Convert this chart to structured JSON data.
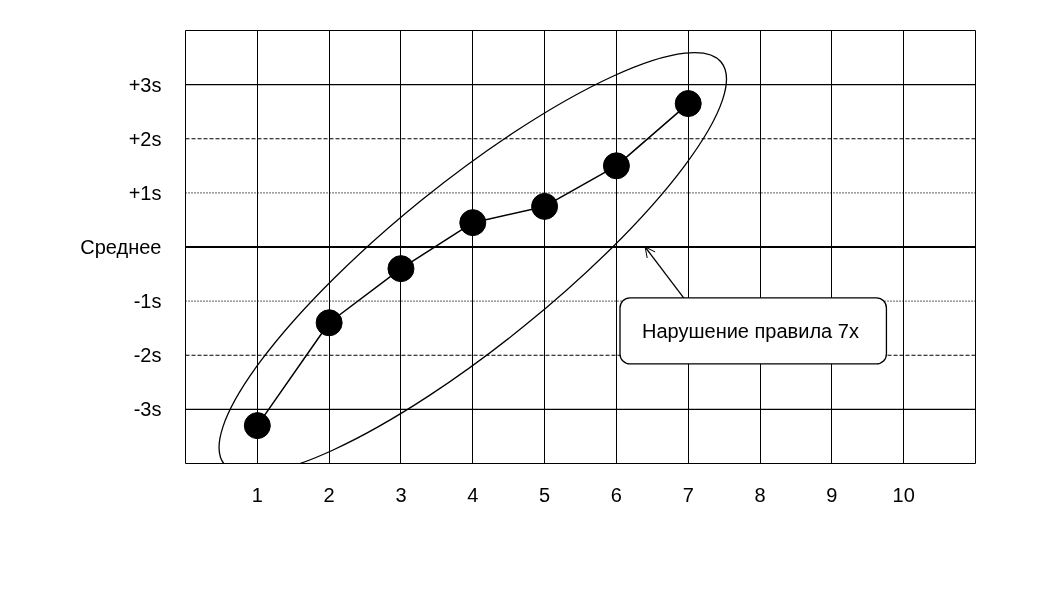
{
  "chart_data": {
    "type": "line",
    "x": [
      1,
      2,
      3,
      4,
      5,
      6,
      7
    ],
    "series": [
      {
        "color": "#000000",
        "values": [
          -3.3,
          -1.4,
          -0.4,
          0.45,
          0.75,
          1.5,
          2.65
        ]
      }
    ],
    "xlim": [
      0,
      11
    ],
    "xticks": [
      1,
      2,
      3,
      4,
      5,
      6,
      7,
      8,
      9,
      10
    ],
    "ylim": [
      -4,
      4
    ],
    "yticks": [
      {
        "value": 3,
        "label": "+3s"
      },
      {
        "value": 2,
        "label": "+2s"
      },
      {
        "value": 1,
        "label": "+1s"
      },
      {
        "value": 0,
        "label": "Среднее"
      },
      {
        "value": -1,
        "label": "-1s"
      },
      {
        "value": -2,
        "label": "-2s"
      },
      {
        "value": -3,
        "label": "-3s"
      }
    ],
    "grid": "x",
    "marker": "circle",
    "line_style": "solid",
    "ref_lines": [
      {
        "axis": "y",
        "value": 0,
        "color": "#000000",
        "line_style": "solid"
      },
      {
        "axis": "y",
        "value": 3,
        "color": "#000000",
        "line_style": "solid"
      },
      {
        "axis": "y",
        "value": -3,
        "color": "#000000",
        "line_style": "solid"
      },
      {
        "axis": "y",
        "value": 1,
        "color": "#000000",
        "line_style": "dotted"
      },
      {
        "axis": "y",
        "value": -1,
        "color": "#000000",
        "line_style": "dotted"
      },
      {
        "axis": "y",
        "value": 2,
        "color": "#000000",
        "line_style": "dashed"
      },
      {
        "axis": "y",
        "value": -2,
        "color": "#000000",
        "line_style": "dashed"
      }
    ],
    "annotations": [
      {
        "text": "Нарушение правила  7x",
        "x": 6.4,
        "y": 0
      }
    ]
  }
}
